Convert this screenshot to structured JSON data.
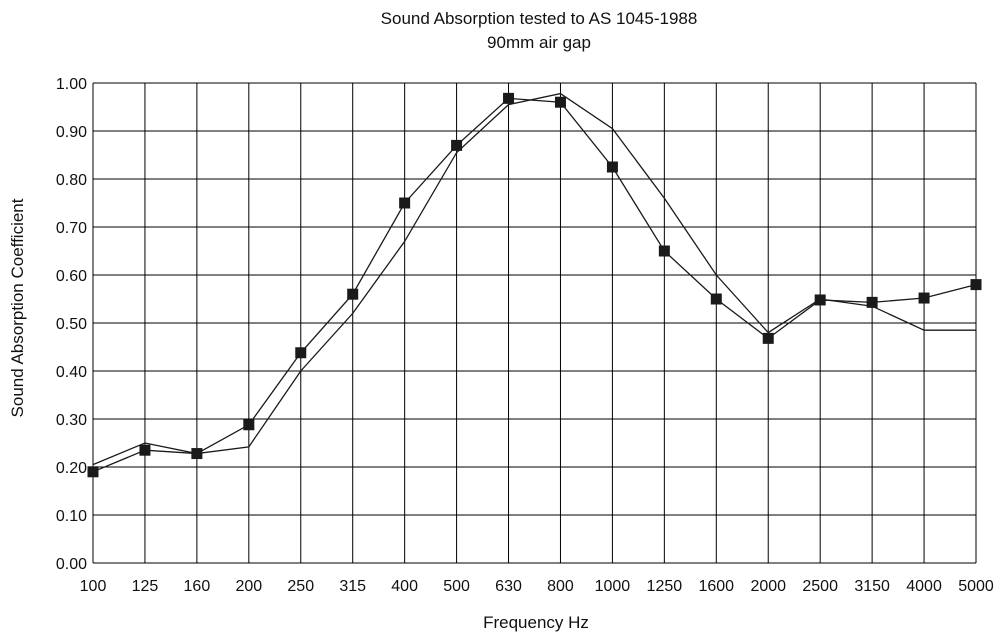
{
  "chart_data": {
    "type": "line",
    "title": "Sound Absorption tested to AS 1045-1988",
    "subtitle": "90mm air gap",
    "xlabel": "Frequency Hz",
    "ylabel": "Sound Absorption Coefficient",
    "categories": [
      "100",
      "125",
      "160",
      "200",
      "250",
      "315",
      "400",
      "500",
      "630",
      "800",
      "1000",
      "1250",
      "1600",
      "2000",
      "2500",
      "3150",
      "4000",
      "5000"
    ],
    "yticks": [
      "0.00",
      "0.10",
      "0.20",
      "0.30",
      "0.40",
      "0.50",
      "0.60",
      "0.70",
      "0.80",
      "0.90",
      "1.00"
    ],
    "ylim": [
      0,
      1
    ],
    "grid": true,
    "legend": "none",
    "series": [
      {
        "marker": "square",
        "values": [
          0.19,
          0.235,
          0.228,
          0.288,
          0.438,
          0.56,
          0.75,
          0.87,
          0.968,
          0.96,
          0.825,
          0.65,
          0.55,
          0.468,
          0.548,
          0.543,
          0.552,
          0.58
        ]
      },
      {
        "marker": "none",
        "values": [
          0.205,
          0.25,
          0.228,
          0.242,
          0.4,
          0.52,
          0.67,
          0.855,
          0.955,
          0.978,
          0.905,
          0.76,
          0.6,
          0.48,
          0.55,
          0.535,
          0.485,
          0.485
        ]
      }
    ],
    "colors": {
      "line": "#1a1a1a",
      "marker": "#1a1a1a",
      "grid": "#000000"
    }
  }
}
